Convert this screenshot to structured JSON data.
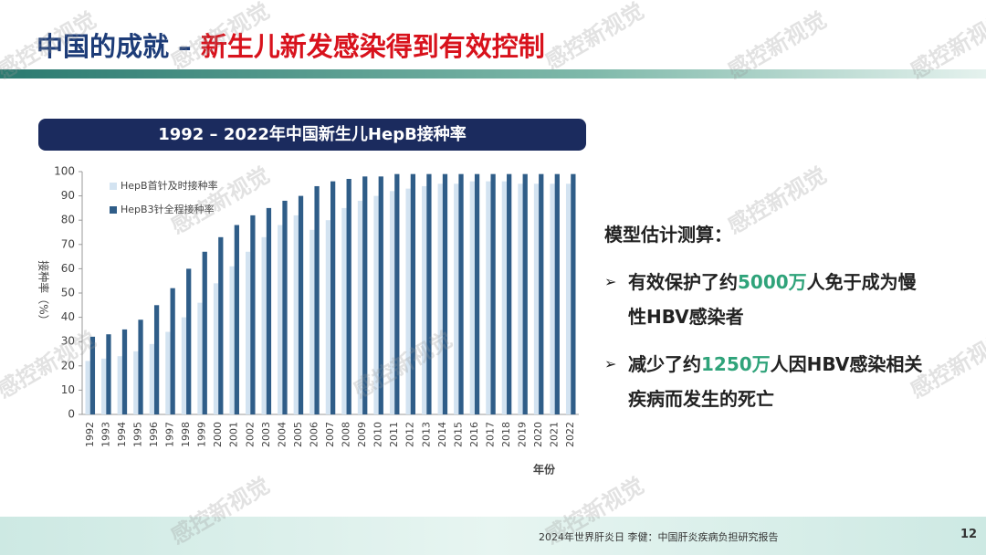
{
  "slide": {
    "title_part1": "中国的成就 – ",
    "title_part2": "新生儿新发感染得到有效控制",
    "heading": "模型估计测算：",
    "bullets": [
      {
        "before": "有效保护了约",
        "highlight": "5000万",
        "after": "人免于成为慢性HBV感染者"
      },
      {
        "before": "减少了约",
        "highlight": "1250万",
        "after": "人因HBV感染相关疾病而发生的死亡"
      }
    ],
    "footer": "2024年世界肝炎日 李健：中国肝炎疾病负担研究报告",
    "page_number": "12",
    "watermark": "感控新视觉"
  },
  "chart_data": {
    "type": "bar",
    "title": "1992 – 2022年中国新生儿HepB接种率",
    "x_label": "年份",
    "y_label": "接种率（%）",
    "categories": [
      "1992",
      "1993",
      "1994",
      "1995",
      "1996",
      "1997",
      "1998",
      "1999",
      "2000",
      "2001",
      "2002",
      "2003",
      "2004",
      "2005",
      "2006",
      "2007",
      "2008",
      "2009",
      "2010",
      "2011",
      "2012",
      "2013",
      "2014",
      "2015",
      "2016",
      "2017",
      "2018",
      "2019",
      "2020",
      "2021",
      "2022"
    ],
    "series": [
      {
        "name": "HepB首针及时接种率",
        "color": "#d3e3f1",
        "values": [
          22,
          23,
          24,
          26,
          29,
          34,
          40,
          46,
          54,
          61,
          67,
          73,
          78,
          82,
          76,
          80,
          85,
          88,
          90,
          92,
          93,
          94,
          95,
          95,
          96,
          96,
          96,
          95,
          95,
          95,
          95
        ]
      },
      {
        "name": "HepB3针全程接种率",
        "color": "#2f5d88",
        "values": [
          32,
          33,
          35,
          39,
          45,
          52,
          60,
          67,
          73,
          78,
          82,
          85,
          88,
          90,
          94,
          96,
          97,
          98,
          98,
          99,
          99,
          99,
          99,
          99,
          99,
          99,
          99,
          99,
          99,
          99,
          99
        ]
      }
    ],
    "ylim": [
      0,
      100
    ],
    "yticks": [
      0,
      10,
      20,
      30,
      40,
      50,
      60,
      70,
      80,
      90,
      100
    ],
    "grid": false,
    "legend": "top-left"
  }
}
